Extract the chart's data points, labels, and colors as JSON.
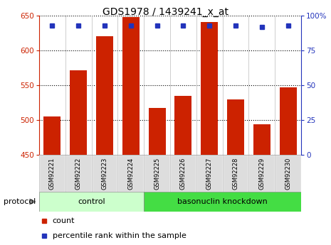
{
  "title": "GDS1978 / 1439241_x_at",
  "samples": [
    "GSM92221",
    "GSM92222",
    "GSM92223",
    "GSM92224",
    "GSM92225",
    "GSM92226",
    "GSM92227",
    "GSM92228",
    "GSM92229",
    "GSM92230"
  ],
  "counts": [
    505,
    571,
    620,
    648,
    517,
    535,
    641,
    530,
    494,
    547
  ],
  "percentile_ranks": [
    93,
    93,
    93,
    93,
    93,
    93,
    93,
    93,
    92,
    93
  ],
  "ylim_left": [
    450,
    650
  ],
  "ylim_right": [
    0,
    100
  ],
  "yticks_left": [
    450,
    500,
    550,
    600,
    650
  ],
  "yticks_right": [
    0,
    25,
    50,
    75,
    100
  ],
  "bar_color": "#cc2200",
  "dot_color": "#2233bb",
  "control_label": "control",
  "knockdown_label": "basonuclin knockdown",
  "protocol_label": "protocol",
  "legend_count": "count",
  "legend_percentile": "percentile rank within the sample",
  "control_color": "#ccffcc",
  "knockdown_color": "#44dd44",
  "left_axis_color": "#cc2200",
  "right_axis_color": "#2233bb",
  "tick_bg_color": "#dddddd",
  "fig_width": 4.65,
  "fig_height": 3.45,
  "dpi": 100
}
